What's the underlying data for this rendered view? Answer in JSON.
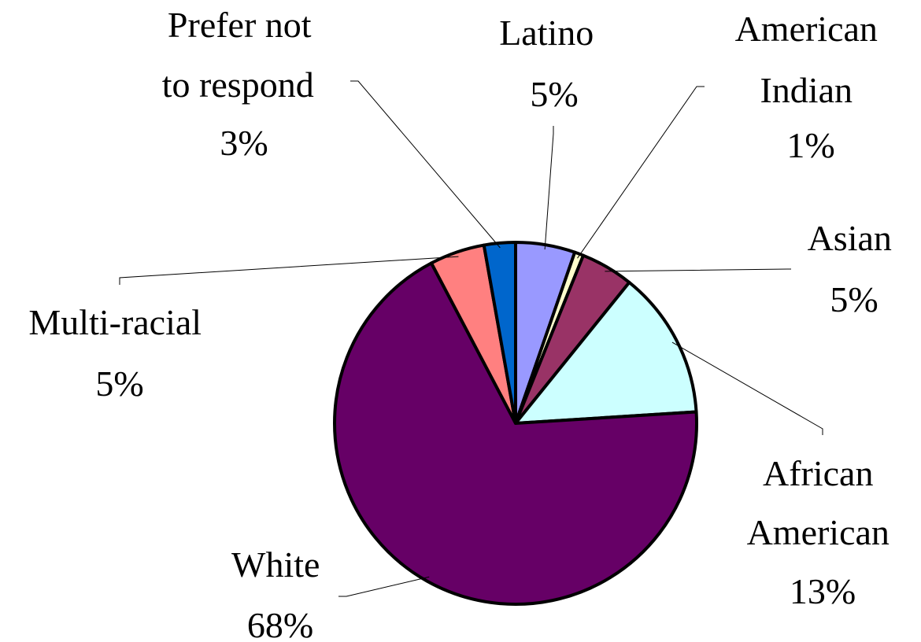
{
  "chart_data": {
    "type": "pie",
    "title": "",
    "start_angle": "12 o'clock",
    "direction": "clockwise",
    "slices": [
      {
        "label": [
          "Latino"
        ],
        "percent_label": "5%",
        "value": 5.3,
        "color": "#9999FF"
      },
      {
        "label": [
          "American",
          "Indian"
        ],
        "percent_label": "1%",
        "value": 0.8,
        "color": "#FFFFCC"
      },
      {
        "label": [
          "Asian"
        ],
        "percent_label": "5%",
        "value": 4.7,
        "color": "#993366"
      },
      {
        "label": [
          "African",
          "American"
        ],
        "percent_label": "13%",
        "value": 13.2,
        "color": "#CCFFFF"
      },
      {
        "label": [
          "White"
        ],
        "percent_label": "68%",
        "value": 68.3,
        "color": "#660066"
      },
      {
        "label": [
          "Multi-racial"
        ],
        "percent_label": "5%",
        "value": 4.9,
        "color": "#FF8080"
      },
      {
        "label": [
          "Prefer not",
          "to respond"
        ],
        "percent_label": "3%",
        "value": 2.8,
        "color": "#0066CC"
      }
    ]
  }
}
